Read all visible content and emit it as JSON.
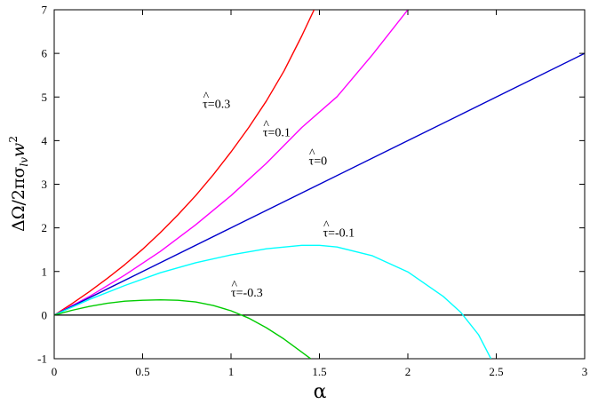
{
  "chart_data": {
    "type": "line",
    "title": "",
    "xlabel": "α",
    "ylabel": "ΔΩ/2πσ",
    "ylabel_sub": "lv",
    "ylabel_tail": "w",
    "ylabel_sup": "2",
    "xlim": [
      0,
      3
    ],
    "ylim": [
      -1,
      7
    ],
    "grid": false,
    "x_ticks": [
      0,
      0.5,
      1,
      1.5,
      2,
      2.5,
      3
    ],
    "x_tick_labels": [
      "0",
      "0.5",
      "1",
      "1.5",
      "2",
      "2.5",
      "3"
    ],
    "y_ticks": [
      -1,
      0,
      1,
      2,
      3,
      4,
      5,
      6,
      7
    ],
    "y_tick_labels": [
      "-1",
      "0",
      "1",
      "2",
      "3",
      "4",
      "5",
      "6",
      "7"
    ],
    "series": [
      {
        "label": "τ̂=0.3",
        "color": "#ff0000",
        "x": [
          0,
          0.1,
          0.2,
          0.3,
          0.4,
          0.5,
          0.6,
          0.7,
          0.8,
          0.9,
          1.0,
          1.1,
          1.2,
          1.3,
          1.4,
          1.47
        ],
        "y": [
          0,
          0.26,
          0.54,
          0.84,
          1.16,
          1.51,
          1.89,
          2.3,
          2.74,
          3.22,
          3.74,
          4.3,
          4.91,
          5.6,
          6.4,
          7.0
        ]
      },
      {
        "label": "τ̂=0.1",
        "color": "#ff00ff",
        "x": [
          0,
          0.2,
          0.4,
          0.6,
          0.8,
          1.0,
          1.2,
          1.4,
          1.6,
          1.8,
          2.0
        ],
        "y": [
          0,
          0.43,
          0.92,
          1.46,
          2.07,
          2.74,
          3.48,
          4.3,
          5.01,
          5.97,
          7.0
        ]
      },
      {
        "label": "τ̂=0",
        "color": "#0000cc",
        "x": [
          0,
          0.5,
          1,
          1.5,
          2,
          2.5,
          3
        ],
        "y": [
          0,
          1.0,
          2.0,
          3.0,
          4.0,
          5.0,
          6.0
        ]
      },
      {
        "label": "τ̂=-0.1",
        "color": "#00ffff",
        "x": [
          0,
          0.2,
          0.4,
          0.6,
          0.8,
          1.0,
          1.2,
          1.4,
          1.5,
          1.6,
          1.8,
          2.0,
          2.2,
          2.3,
          2.4,
          2.47
        ],
        "y": [
          0,
          0.36,
          0.68,
          0.97,
          1.2,
          1.38,
          1.52,
          1.6,
          1.6,
          1.56,
          1.36,
          0.99,
          0.43,
          0.06,
          -0.45,
          -1.0
        ]
      },
      {
        "label": "τ̂=-0.3",
        "color": "#00cc00",
        "x": [
          0,
          0.1,
          0.2,
          0.3,
          0.4,
          0.5,
          0.6,
          0.7,
          0.8,
          0.9,
          1.0,
          1.1,
          1.2,
          1.3,
          1.4,
          1.45
        ],
        "y": [
          0,
          0.11,
          0.2,
          0.27,
          0.32,
          0.34,
          0.35,
          0.34,
          0.3,
          0.22,
          0.1,
          -0.07,
          -0.29,
          -0.55,
          -0.85,
          -1.0
        ]
      },
      {
        "label": "",
        "color": "#000000",
        "x": [
          0,
          3
        ],
        "y": [
          0,
          0
        ]
      }
    ],
    "annotations": [
      {
        "base": "τ",
        "text": "=0.3",
        "x": 0.84,
        "y": 4.75
      },
      {
        "base": "τ",
        "text": "=0.1",
        "x": 1.18,
        "y": 4.1
      },
      {
        "base": "τ",
        "text": "=0",
        "x": 1.44,
        "y": 3.45
      },
      {
        "base": "τ",
        "text": "=-0.1",
        "x": 1.52,
        "y": 1.8
      },
      {
        "base": "τ",
        "text": "=-0.3",
        "x": 1.0,
        "y": 0.42
      }
    ]
  }
}
